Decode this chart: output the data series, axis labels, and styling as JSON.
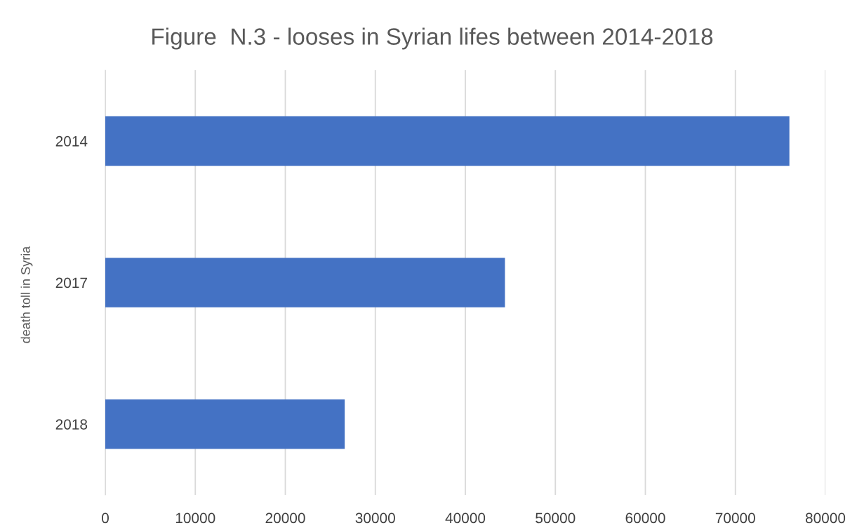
{
  "chart_data": {
    "type": "bar",
    "orientation": "horizontal",
    "title": "Figure  N.3 - looses in Syrian lifes between 2014-2018",
    "ylabel": "death toll in Syria",
    "categories": [
      "2014",
      "2017",
      "2018"
    ],
    "values": [
      76000,
      44400,
      26600
    ],
    "color": "#4472c4",
    "xlim": [
      0,
      80000
    ],
    "xticks": [
      0,
      10000,
      20000,
      30000,
      40000,
      50000,
      60000,
      70000,
      80000
    ],
    "grid": "x",
    "legend": false
  }
}
